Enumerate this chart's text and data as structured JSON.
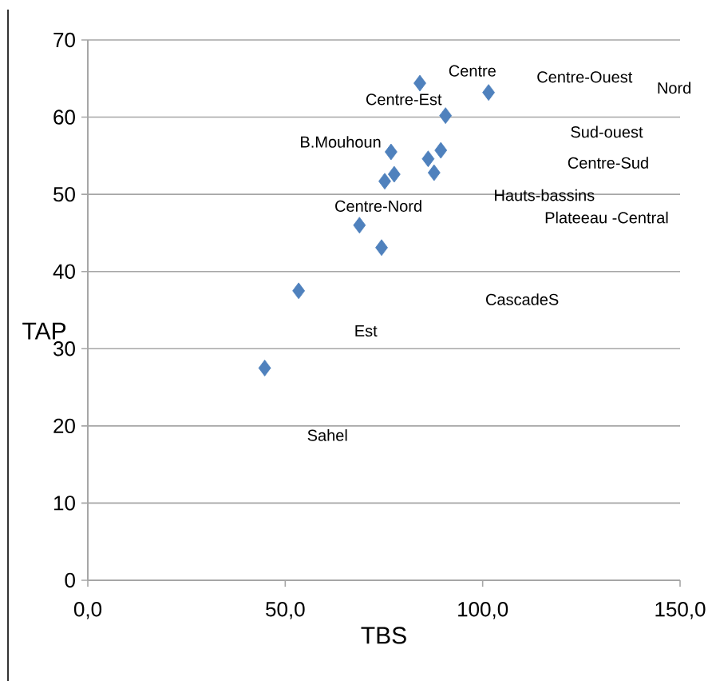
{
  "chart_data": {
    "type": "scatter",
    "xlabel": "TBS",
    "ylabel": "TAP",
    "x": [
      84.1,
      101.5,
      90.6,
      76.8,
      89.4,
      86.2,
      87.7,
      77.6,
      75.2,
      68.8,
      74.4,
      53.4,
      44.8
    ],
    "values": [
      64.4,
      63.2,
      60.2,
      55.5,
      55.7,
      54.6,
      52.8,
      52.6,
      51.7,
      46.0,
      43.1,
      37.5,
      27.5
    ],
    "color": "#4f81bd",
    "marker": "diamond",
    "grid": "y",
    "xlim": [
      0,
      150
    ],
    "ylim": [
      0,
      70
    ],
    "xticks": [
      {
        "value": 0,
        "label": "0,0"
      },
      {
        "value": 50,
        "label": "50,0"
      },
      {
        "value": 100,
        "label": "100,0"
      },
      {
        "value": 150,
        "label": "150,0"
      }
    ],
    "yticks": [
      0,
      10,
      20,
      30,
      40,
      50,
      60,
      70
    ],
    "annotations": [
      "Centre",
      "Centre-Ouest",
      "Nord",
      "Centre-Est",
      "Sud-ouest",
      "B.Mouhoun",
      "Centre-Sud",
      "Hauts-bassins",
      "Plateeau -Central",
      "Centre-Nord",
      "CascadeS",
      "Est",
      "Sahel"
    ]
  }
}
